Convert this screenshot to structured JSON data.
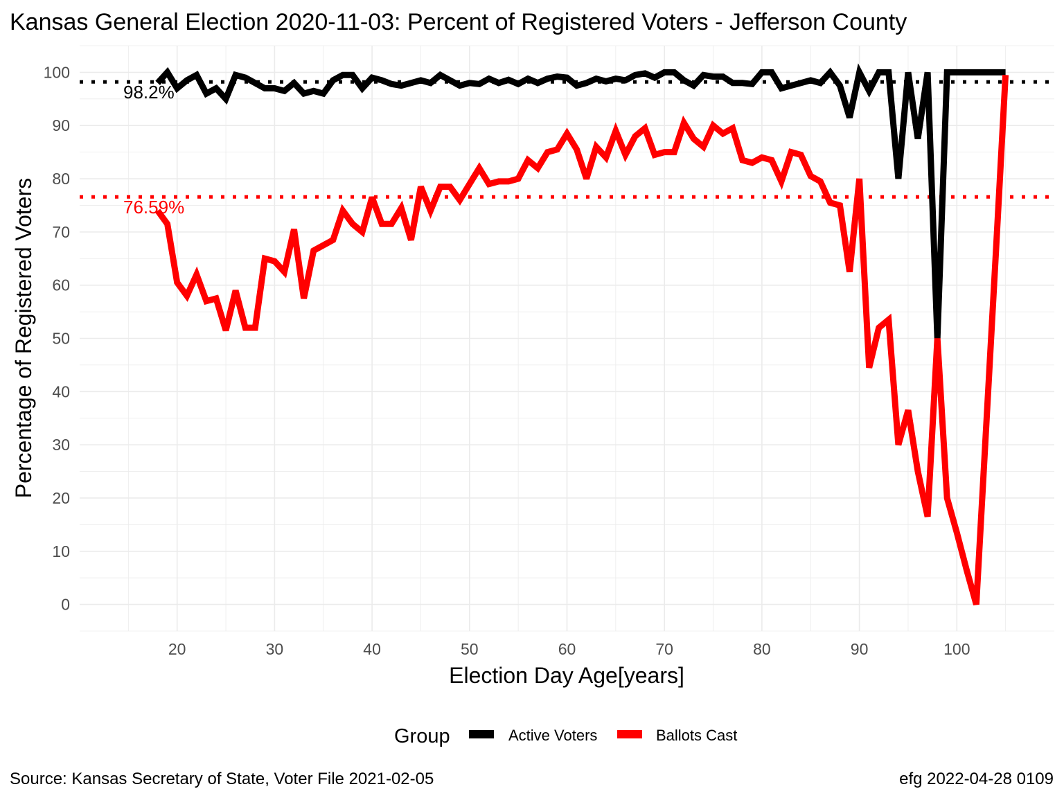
{
  "title": "Kansas General Election 2020-11-03:  Percent of Registered Voters - Jefferson County",
  "caption_left": "Source:  Kansas Secretary of State, Voter File  2021-02-05",
  "caption_right": "efg 2022-04-28 0109",
  "colors": {
    "active": "#000000",
    "ballots": "#ff0000",
    "grid": "#ebebeb",
    "tick": "#4d4d4d"
  },
  "chart_data": {
    "type": "line",
    "xlabel": "Election Day Age[years]",
    "ylabel": "Percentage of Registered Voters",
    "xlim": [
      10,
      110
    ],
    "ylim": [
      -5,
      105
    ],
    "xticks": [
      20,
      30,
      40,
      50,
      60,
      70,
      80,
      90,
      100
    ],
    "yticks": [
      0,
      10,
      20,
      30,
      40,
      50,
      60,
      70,
      80,
      90,
      100
    ],
    "grid": true,
    "legend": {
      "title": "Group",
      "position": "bottom"
    },
    "reference_lines": [
      {
        "series": "Active Voters",
        "value": 98.2,
        "label": "98.2%",
        "style": "dotted"
      },
      {
        "series": "Ballots Cast",
        "value": 76.59,
        "label": "76.59%",
        "style": "dotted"
      }
    ],
    "series": [
      {
        "name": "Active Voters",
        "color": "#000000",
        "x": [
          18,
          19,
          20,
          21,
          22,
          23,
          24,
          25,
          26,
          27,
          28,
          29,
          30,
          31,
          32,
          33,
          34,
          35,
          36,
          37,
          38,
          39,
          40,
          41,
          42,
          43,
          44,
          45,
          46,
          47,
          48,
          49,
          50,
          51,
          52,
          53,
          54,
          55,
          56,
          57,
          58,
          59,
          60,
          61,
          62,
          63,
          64,
          65,
          66,
          67,
          68,
          69,
          70,
          71,
          72,
          73,
          74,
          75,
          76,
          77,
          78,
          79,
          80,
          81,
          82,
          83,
          84,
          85,
          86,
          87,
          88,
          89,
          90,
          91,
          92,
          93,
          94,
          95,
          96,
          97,
          98,
          99,
          100,
          101,
          102,
          103,
          104,
          105
        ],
        "y": [
          98,
          100,
          97,
          98.5,
          99.5,
          96,
          97,
          95,
          99.5,
          99,
          98,
          97,
          97,
          96.5,
          98,
          96,
          96.5,
          96,
          98.5,
          99.5,
          99.5,
          97,
          99,
          98.5,
          97.8,
          97.5,
          98,
          98.5,
          98,
          99.5,
          98.5,
          97.5,
          98,
          97.8,
          98.8,
          98,
          98.6,
          97.8,
          98.8,
          98,
          98.8,
          99.2,
          99,
          97.5,
          98,
          98.8,
          98.3,
          98.8,
          98.5,
          99.5,
          99.8,
          99,
          100,
          100,
          98.5,
          97.5,
          99.5,
          99.2,
          99.2,
          98,
          98,
          97.8,
          100,
          100,
          97,
          97.5,
          98,
          98.5,
          98,
          100,
          97.5,
          91.5,
          100,
          96.5,
          100,
          100,
          80,
          100,
          87.5,
          100,
          50,
          100,
          100,
          100,
          100,
          100,
          100,
          100
        ]
      },
      {
        "name": "Ballots Cast",
        "color": "#ff0000",
        "x": [
          18,
          19,
          20,
          21,
          22,
          23,
          24,
          25,
          26,
          27,
          28,
          29,
          30,
          31,
          32,
          33,
          34,
          35,
          36,
          37,
          38,
          39,
          40,
          41,
          42,
          43,
          44,
          45,
          46,
          47,
          48,
          49,
          50,
          51,
          52,
          53,
          54,
          55,
          56,
          57,
          58,
          59,
          60,
          61,
          62,
          63,
          64,
          65,
          66,
          67,
          68,
          69,
          70,
          71,
          72,
          73,
          74,
          75,
          76,
          77,
          78,
          79,
          80,
          81,
          82,
          83,
          84,
          85,
          86,
          87,
          88,
          89,
          90,
          91,
          92,
          93,
          94,
          95,
          96,
          97,
          98,
          99,
          100,
          101,
          102,
          103,
          104,
          105
        ],
        "y": [
          74,
          71.5,
          60.5,
          58,
          62,
          57,
          57.5,
          51.5,
          59,
          52,
          52,
          65,
          64.5,
          62.5,
          70.5,
          57.5,
          66.5,
          67.5,
          68.5,
          74,
          71.5,
          70,
          76.5,
          71.5,
          71.5,
          74.5,
          68.5,
          78.5,
          74,
          78.5,
          78.5,
          76,
          79,
          82,
          79,
          79.5,
          79.5,
          80,
          83.5,
          82,
          85,
          85.5,
          88.5,
          85.5,
          80,
          86,
          84,
          89,
          84.5,
          88,
          89.5,
          84.5,
          85,
          85,
          90.5,
          87.5,
          86,
          90,
          88.5,
          89.5,
          83.5,
          83,
          84,
          83.5,
          79.5,
          85,
          84.5,
          80.5,
          79.5,
          75.5,
          75,
          62.5,
          80,
          44.5,
          52,
          53.5,
          30,
          36.5,
          25,
          16.5,
          50,
          20,
          13.5,
          6.5,
          0,
          33,
          66,
          99.5
        ]
      }
    ]
  }
}
